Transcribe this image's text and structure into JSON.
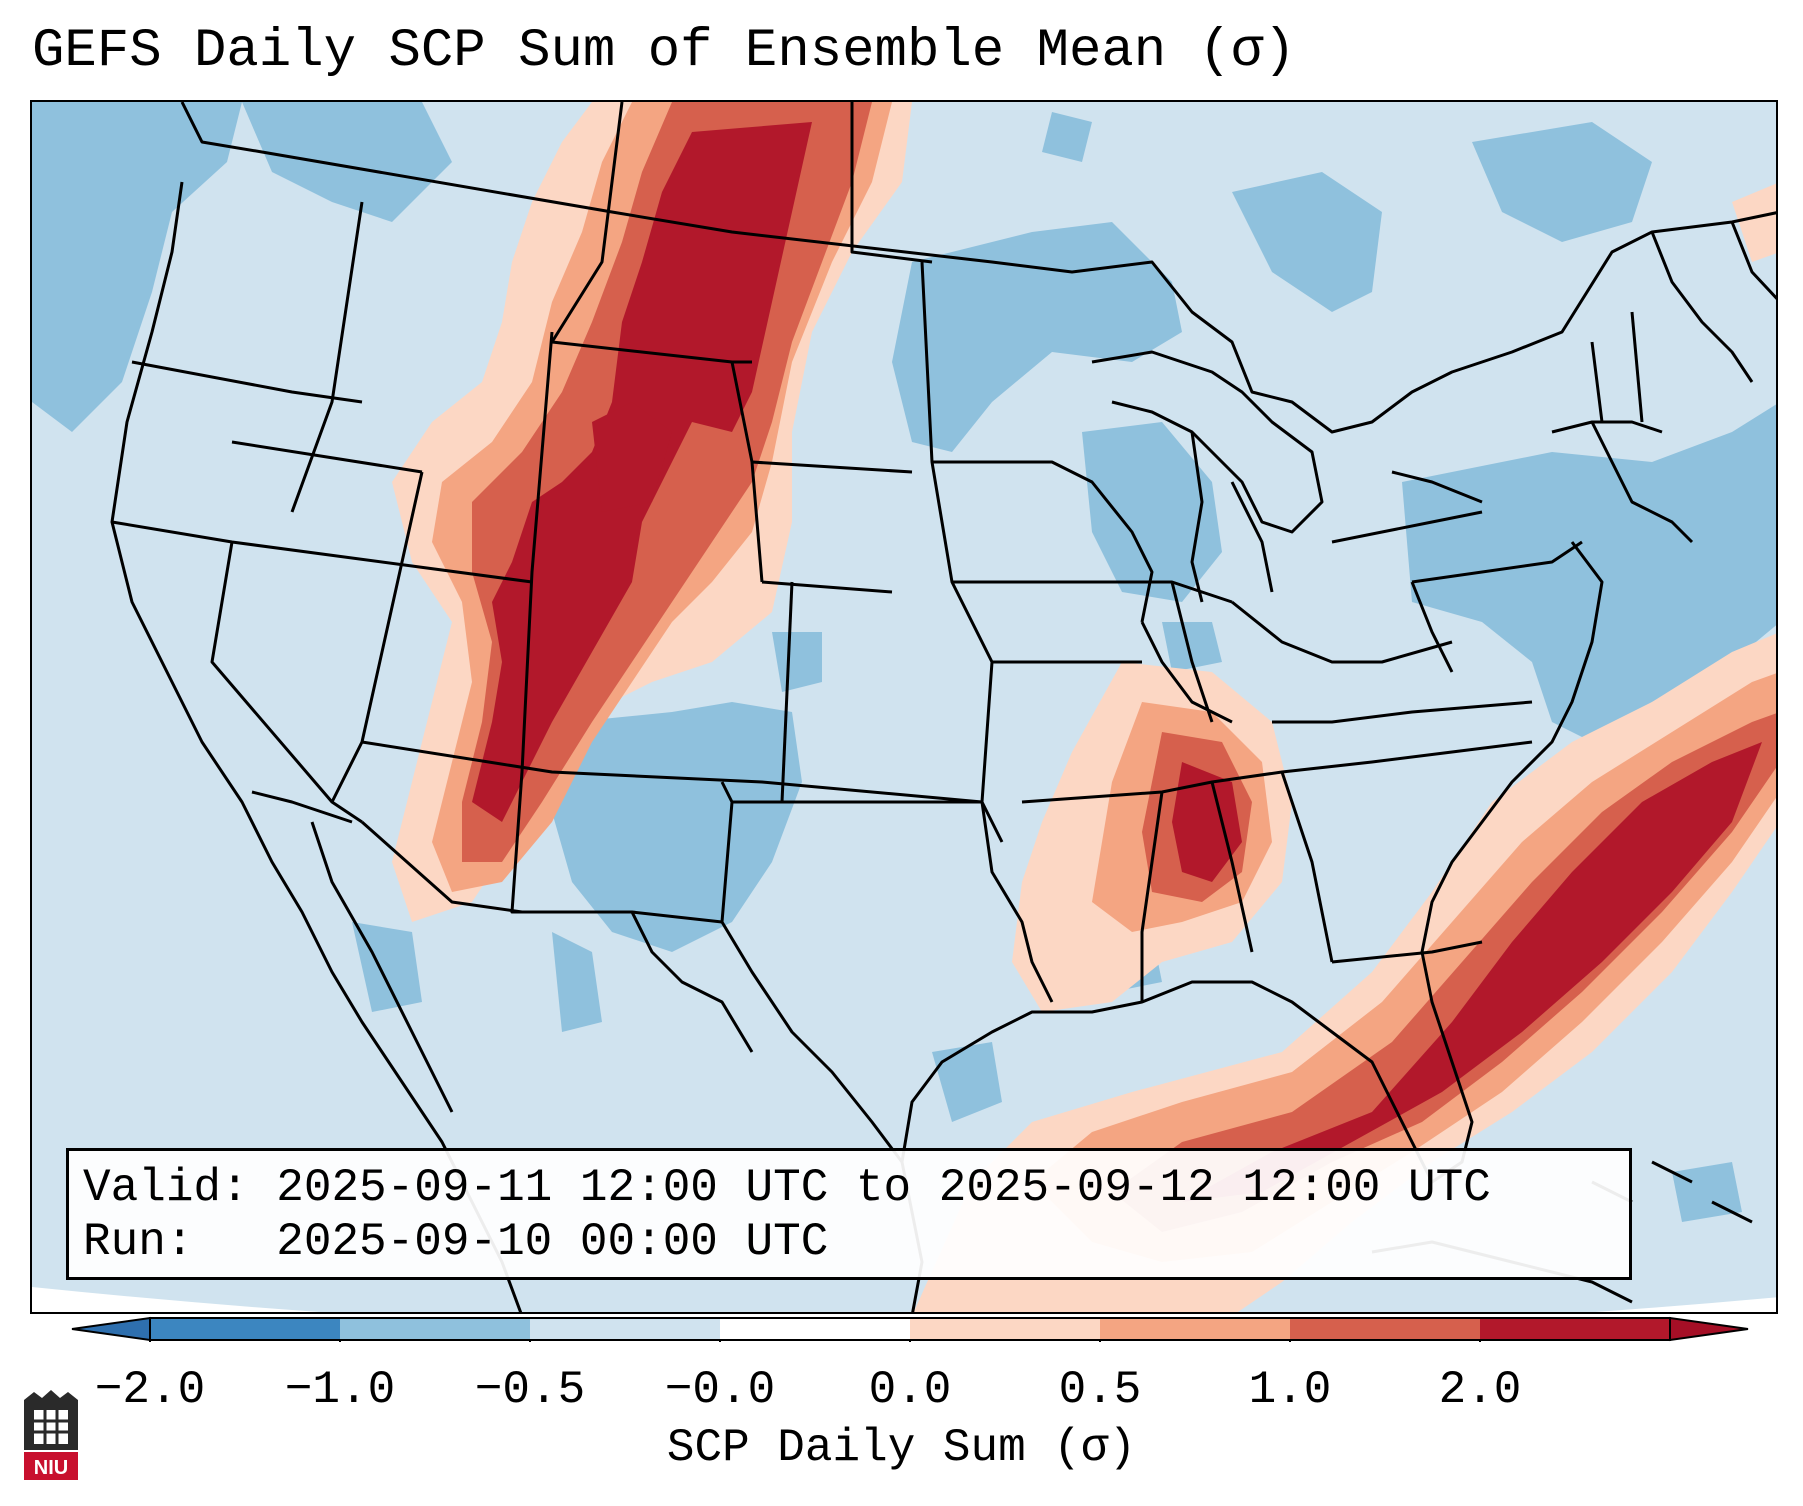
{
  "title": "GEFS Daily SCP Sum of Ensemble Mean (σ)",
  "valid_line": "Valid: 2025-09-11 12:00 UTC to 2025-09-12 12:00 UTC",
  "run_line": "Run:   2025-09-10 00:00 UTC",
  "colorbar": {
    "label": "SCP Daily Sum (σ)",
    "ticks": [
      "−2.0",
      "−1.0",
      "−0.5",
      "−0.0",
      "0.0",
      "0.5",
      "1.0",
      "2.0"
    ],
    "colors": [
      "#3c86c0",
      "#8fc1dd",
      "#d0e3ef",
      "#ffffff",
      "#fcd7c4",
      "#f4a582",
      "#d6604d",
      "#b2182b"
    ],
    "under_color": "#2e6fae",
    "over_color": "#a50f26"
  },
  "map": {
    "region": "CONUS",
    "field": "SCP daily sum anomaly",
    "background_color": "#d0e3ef"
  },
  "logo": {
    "text": "NIU",
    "name": "Northern Illinois University"
  }
}
